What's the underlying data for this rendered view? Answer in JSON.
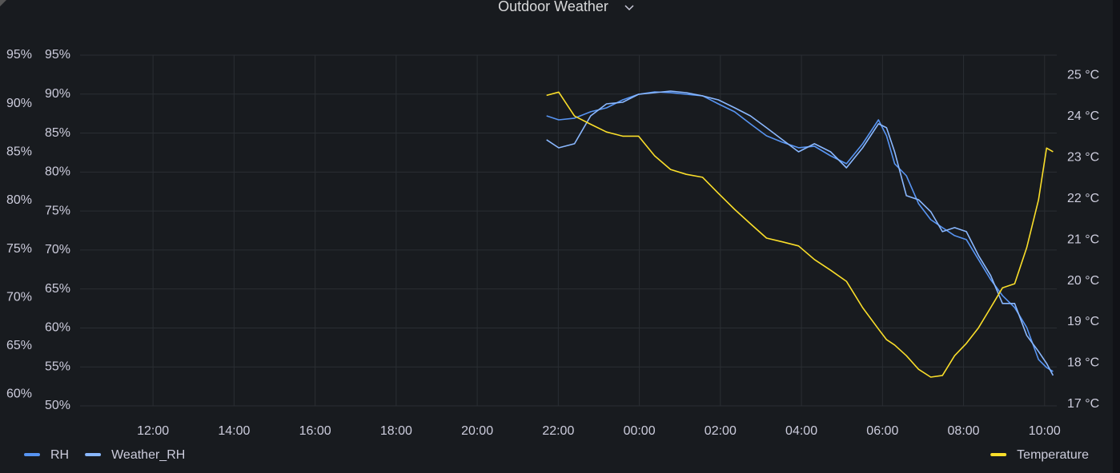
{
  "chart_data": {
    "type": "line",
    "title": "Outdoor Weather",
    "x": [
      21.71,
      22.01,
      22.4,
      22.8,
      23.19,
      23.59,
      23.98,
      24.38,
      24.77,
      25.16,
      25.56,
      25.95,
      26.35,
      26.74,
      27.14,
      27.53,
      27.93,
      28.32,
      28.72,
      29.11,
      29.51,
      29.9,
      30.1,
      30.3,
      30.59,
      30.89,
      31.19,
      31.48,
      31.78,
      32.07,
      32.37,
      32.67,
      32.96,
      33.26,
      33.56,
      33.85,
      34.05,
      34.21
    ],
    "xlim": [
      10.2,
      34.3
    ],
    "xticks": [
      {
        "value": 12,
        "label": "12:00"
      },
      {
        "value": 14,
        "label": "14:00"
      },
      {
        "value": 16,
        "label": "16:00"
      },
      {
        "value": 18,
        "label": "18:00"
      },
      {
        "value": 20,
        "label": "20:00"
      },
      {
        "value": 22,
        "label": "22:00"
      },
      {
        "value": 24,
        "label": "00:00"
      },
      {
        "value": 26,
        "label": "02:00"
      },
      {
        "value": 28,
        "label": "04:00"
      },
      {
        "value": 30,
        "label": "06:00"
      },
      {
        "value": 32,
        "label": "08:00"
      },
      {
        "value": 34,
        "label": "10:00"
      }
    ],
    "ylim": [
      50,
      95
    ],
    "yticks": [
      {
        "value": 50,
        "label": "50%"
      },
      {
        "value": 55,
        "label": "55%"
      },
      {
        "value": 60,
        "label": "60%"
      },
      {
        "value": 65,
        "label": "65%"
      },
      {
        "value": 70,
        "label": "70%"
      },
      {
        "value": 75,
        "label": "75%"
      },
      {
        "value": 80,
        "label": "80%"
      },
      {
        "value": 85,
        "label": "85%"
      },
      {
        "value": 90,
        "label": "90%"
      },
      {
        "value": 95,
        "label": "95%"
      }
    ],
    "y3lim": [
      58.8,
      95
    ],
    "y3ticks": [
      {
        "value": 60,
        "label": "60%"
      },
      {
        "value": 65,
        "label": "65%"
      },
      {
        "value": 70,
        "label": "70%"
      },
      {
        "value": 75,
        "label": "75%"
      },
      {
        "value": 80,
        "label": "80%"
      },
      {
        "value": 85,
        "label": "85%"
      },
      {
        "value": 90,
        "label": "90%"
      },
      {
        "value": 95,
        "label": "95%"
      }
    ],
    "y2lim": [
      16.96,
      25.49
    ],
    "y2ticks": [
      {
        "value": 17,
        "label": "17 °C"
      },
      {
        "value": 18,
        "label": "18 °C"
      },
      {
        "value": 19,
        "label": "19 °C"
      },
      {
        "value": 20,
        "label": "20 °C"
      },
      {
        "value": 21,
        "label": "21 °C"
      },
      {
        "value": 22,
        "label": "22 °C"
      },
      {
        "value": 23,
        "label": "23 °C"
      },
      {
        "value": 24,
        "label": "24 °C"
      },
      {
        "value": 25,
        "label": "25 °C"
      }
    ],
    "grid": true,
    "series": [
      {
        "name": "RH",
        "color": "#5794f2",
        "axis": "y3",
        "values": [
          88.73,
          88.32,
          88.49,
          89.15,
          89.56,
          90.38,
          90.96,
          91.21,
          91.13,
          90.96,
          90.8,
          89.97,
          89.15,
          87.91,
          86.67,
          86.01,
          85.44,
          85.6,
          84.61,
          83.79,
          85.85,
          88.32,
          86.67,
          83.79,
          82.55,
          79.67,
          78.02,
          77.2,
          76.37,
          75.96,
          73.9,
          71.83,
          70.19,
          68.95,
          66.89,
          63.59,
          62.76,
          62.35
        ]
      },
      {
        "name": "Weather_RH",
        "color": "#8ab8ff",
        "axis": "y",
        "values": [
          84.14,
          83.11,
          83.63,
          87.21,
          88.75,
          88.95,
          89.98,
          90.18,
          90.39,
          90.18,
          89.77,
          89.26,
          88.24,
          87.21,
          85.68,
          84.14,
          82.6,
          83.63,
          82.6,
          80.55,
          83.11,
          86.19,
          85.68,
          82.6,
          76.97,
          76.45,
          74.92,
          72.36,
          72.87,
          72.36,
          69.28,
          66.72,
          63.14,
          63.14,
          59.04,
          56.99,
          55.45,
          53.91
        ]
      },
      {
        "name": "Temperature",
        "color": "#fade2a",
        "axis": "y2",
        "values": [
          24.51,
          24.59,
          24.01,
          23.81,
          23.62,
          23.52,
          23.52,
          23.04,
          22.71,
          22.59,
          22.52,
          22.13,
          21.74,
          21.39,
          21.04,
          20.95,
          20.85,
          20.52,
          20.26,
          19.99,
          19.35,
          18.83,
          18.57,
          18.44,
          18.18,
          17.85,
          17.66,
          17.7,
          18.18,
          18.48,
          18.86,
          19.35,
          19.83,
          19.93,
          20.81,
          21.97,
          23.23,
          23.14
        ]
      }
    ]
  }
}
